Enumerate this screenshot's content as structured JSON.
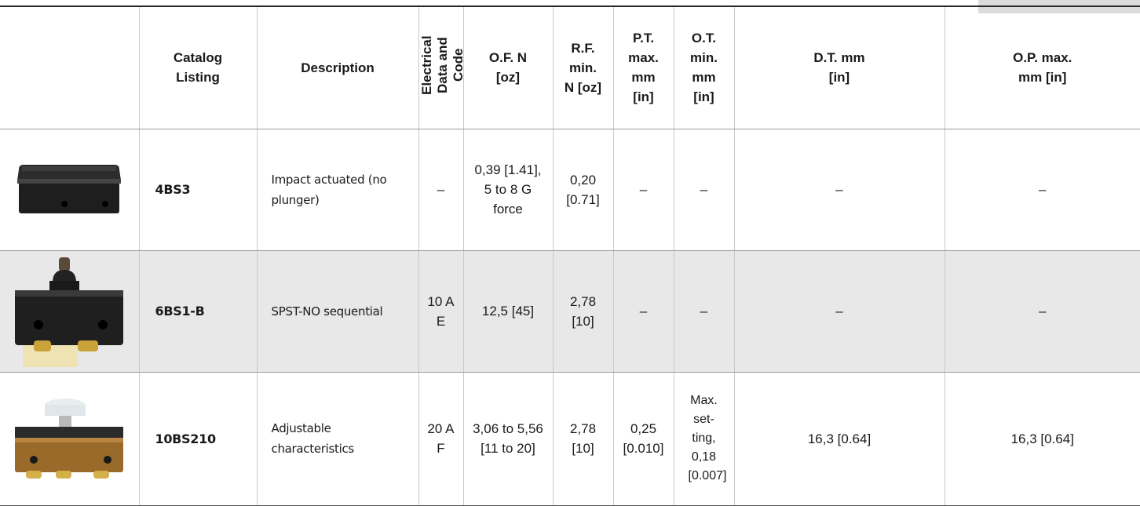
{
  "table": {
    "headers": [
      {
        "id": "image",
        "label": ""
      },
      {
        "id": "catalog",
        "label": "Catalog Listing"
      },
      {
        "id": "description",
        "label": "Description"
      },
      {
        "id": "electrical",
        "label": "Electrical Data and Code"
      },
      {
        "id": "of",
        "label": "O.F. N [oz]"
      },
      {
        "id": "rf",
        "label": "R.F. min. N [oz]"
      },
      {
        "id": "pt",
        "label": "P.T. max. mm [in]"
      },
      {
        "id": "ot",
        "label": "O.T. min. mm [in]"
      },
      {
        "id": "dt",
        "label": "D.T. mm [in]"
      },
      {
        "id": "op",
        "label": "O.P. max. mm [in]"
      }
    ],
    "rows": [
      {
        "image_icon": "impact-actuated-switch-icon",
        "catalog": "4BS3",
        "description": "Impact actuated (no plunger)",
        "electrical": "–",
        "of": "0,39 [1.41], 5 to 8 G force",
        "rf": "0,20 [0.71]",
        "pt": "–",
        "ot": "–",
        "dt": "–",
        "op": "–"
      },
      {
        "image_icon": "plunger-switch-icon",
        "catalog": "6BS1-B",
        "description": "SPST-NO sequential",
        "electrical": "10 A E",
        "of": "12,5 [45]",
        "rf": "2,78 [10]",
        "pt": "–",
        "ot": "–",
        "dt": "–",
        "op": "–"
      },
      {
        "image_icon": "adjustable-switch-icon",
        "catalog": "10BS210",
        "description": "Adjustable characteristics",
        "electrical": "20 A F",
        "of": "3,06 to 5,56 [11 to 20]",
        "rf": "2,78 [10]",
        "pt": "0,25 [0.010]",
        "ot": "Max. set-ting, 0,18 [0.007]",
        "dt": "16,3 [0.64]",
        "op": "16,3 [0.64]"
      }
    ]
  }
}
